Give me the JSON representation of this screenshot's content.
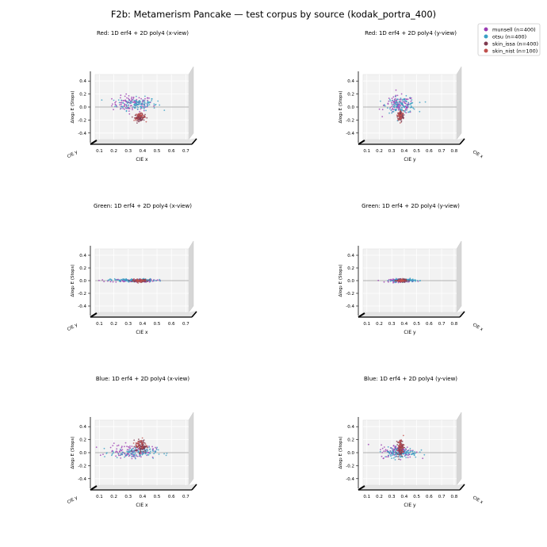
{
  "figure": {
    "title": "F2b: Metamerism Pancake — test corpus by source (kodak_portra_400)"
  },
  "legend": {
    "placement": "top-right",
    "items": [
      {
        "label": "munsell (n=400)",
        "color": "#9b3db3"
      },
      {
        "label": "otsu (n=400)",
        "color": "#3a9fc4"
      },
      {
        "label": "skin_issa (n=400)",
        "color": "#7f3b50"
      },
      {
        "label": "skin_nist (n=100)",
        "color": "#c0504d"
      }
    ]
  },
  "chart_data": [
    {
      "type": "scatter",
      "title": "Red: 1D erf4 + 2D poly4 (x-view)",
      "xlabel": "CIE x",
      "ylabel": "Δlog₂ E (Stops)",
      "depth_label": "CIE y",
      "xticks": [
        "0.1",
        "0.2",
        "0.3",
        "0.4",
        "0.5",
        "0.6",
        "0.7"
      ],
      "yticks": [
        "0.4",
        "0.2",
        "0.0",
        "-0.2",
        "-0.4"
      ],
      "xlim": [
        0.07,
        0.72
      ],
      "ylim": [
        -0.5,
        0.5
      ],
      "clusters": [
        {
          "series": "munsell",
          "center": [
            0.33,
            0.05
          ],
          "spread": [
            0.07,
            0.06
          ],
          "count": 110
        },
        {
          "series": "otsu",
          "center": [
            0.36,
            0.05
          ],
          "spread": [
            0.07,
            0.05
          ],
          "count": 110
        },
        {
          "series": "skin_issa",
          "center": [
            0.38,
            -0.16
          ],
          "spread": [
            0.018,
            0.025
          ],
          "count": 90
        },
        {
          "series": "skin_nist",
          "center": [
            0.38,
            -0.15
          ],
          "spread": [
            0.02,
            0.03
          ],
          "count": 30
        }
      ]
    },
    {
      "type": "scatter",
      "title": "Red: 1D erf4 + 2D poly4 (y-view)",
      "xlabel": "CIE y",
      "ylabel": "Δlog₂ E (Stops)",
      "depth_label": "CIE x",
      "xticks": [
        "0.1",
        "0.2",
        "0.3",
        "0.4",
        "0.5",
        "0.6",
        "0.7",
        "0.8"
      ],
      "yticks": [
        "0.4",
        "0.2",
        "0.0",
        "-0.2",
        "-0.4"
      ],
      "xlim": [
        0.07,
        0.82
      ],
      "ylim": [
        -0.5,
        0.5
      ],
      "clusters": [
        {
          "series": "munsell",
          "center": [
            0.36,
            0.03
          ],
          "spread": [
            0.06,
            0.07
          ],
          "count": 110
        },
        {
          "series": "otsu",
          "center": [
            0.38,
            0.03
          ],
          "spread": [
            0.06,
            0.06
          ],
          "count": 110
        },
        {
          "series": "skin_issa",
          "center": [
            0.37,
            -0.14
          ],
          "spread": [
            0.012,
            0.04
          ],
          "count": 90
        },
        {
          "series": "skin_nist",
          "center": [
            0.37,
            -0.13
          ],
          "spread": [
            0.015,
            0.04
          ],
          "count": 30
        }
      ]
    },
    {
      "type": "scatter",
      "title": "Green: 1D erf4 + 2D poly4 (x-view)",
      "xlabel": "CIE x",
      "ylabel": "Δlog₂ E (Stops)",
      "depth_label": "CIE y",
      "xticks": [
        "0.1",
        "0.2",
        "0.3",
        "0.4",
        "0.5",
        "0.6",
        "0.7"
      ],
      "yticks": [
        "0.4",
        "0.2",
        "0.0",
        "-0.2",
        "-0.4"
      ],
      "xlim": [
        0.07,
        0.72
      ],
      "ylim": [
        -0.5,
        0.5
      ],
      "clusters": [
        {
          "series": "munsell",
          "center": [
            0.33,
            0.0
          ],
          "spread": [
            0.08,
            0.012
          ],
          "count": 110
        },
        {
          "series": "otsu",
          "center": [
            0.34,
            0.005
          ],
          "spread": [
            0.08,
            0.012
          ],
          "count": 110
        },
        {
          "series": "skin_issa",
          "center": [
            0.38,
            0.0
          ],
          "spread": [
            0.025,
            0.01
          ],
          "count": 90
        },
        {
          "series": "skin_nist",
          "center": [
            0.38,
            0.0
          ],
          "spread": [
            0.025,
            0.012
          ],
          "count": 30
        }
      ]
    },
    {
      "type": "scatter",
      "title": "Green: 1D erf4 + 2D poly4 (y-view)",
      "xlabel": "CIE y",
      "ylabel": "Δlog₂ E (Stops)",
      "depth_label": "CIE x",
      "xticks": [
        "0.1",
        "0.2",
        "0.3",
        "0.4",
        "0.5",
        "0.6",
        "0.7",
        "0.8"
      ],
      "yticks": [
        "0.4",
        "0.2",
        "0.0",
        "-0.2",
        "-0.4"
      ],
      "xlim": [
        0.07,
        0.82
      ],
      "ylim": [
        -0.5,
        0.5
      ],
      "clusters": [
        {
          "series": "munsell",
          "center": [
            0.38,
            0.0
          ],
          "spread": [
            0.05,
            0.012
          ],
          "count": 110
        },
        {
          "series": "otsu",
          "center": [
            0.39,
            0.005
          ],
          "spread": [
            0.05,
            0.012
          ],
          "count": 110
        },
        {
          "series": "skin_issa",
          "center": [
            0.38,
            0.0
          ],
          "spread": [
            0.02,
            0.01
          ],
          "count": 90
        },
        {
          "series": "skin_nist",
          "center": [
            0.38,
            0.0
          ],
          "spread": [
            0.02,
            0.012
          ],
          "count": 30
        }
      ]
    },
    {
      "type": "scatter",
      "title": "Blue: 1D erf4 + 2D poly4 (x-view)",
      "xlabel": "CIE x",
      "ylabel": "Δlog₂ E (Stops)",
      "depth_label": "CIE y",
      "xticks": [
        "0.1",
        "0.2",
        "0.3",
        "0.4",
        "0.5",
        "0.6",
        "0.7"
      ],
      "yticks": [
        "0.4",
        "0.2",
        "0.0",
        "-0.2",
        "-0.4"
      ],
      "xlim": [
        0.07,
        0.72
      ],
      "ylim": [
        -0.5,
        0.5
      ],
      "clusters": [
        {
          "series": "munsell",
          "center": [
            0.32,
            0.02
          ],
          "spread": [
            0.08,
            0.05
          ],
          "count": 110
        },
        {
          "series": "otsu",
          "center": [
            0.34,
            0.0
          ],
          "spread": [
            0.08,
            0.04
          ],
          "count": 110
        },
        {
          "series": "skin_issa",
          "center": [
            0.39,
            0.1
          ],
          "spread": [
            0.02,
            0.05
          ],
          "count": 90
        },
        {
          "series": "skin_nist",
          "center": [
            0.39,
            0.12
          ],
          "spread": [
            0.02,
            0.05
          ],
          "count": 30
        }
      ]
    },
    {
      "type": "scatter",
      "title": "Blue: 1D erf4 + 2D poly4 (y-view)",
      "xlabel": "CIE y",
      "ylabel": "Δlog₂ E (Stops)",
      "depth_label": "CIE x",
      "xticks": [
        "0.1",
        "0.2",
        "0.3",
        "0.4",
        "0.5",
        "0.6",
        "0.7",
        "0.8"
      ],
      "yticks": [
        "0.4",
        "0.2",
        "0.0",
        "-0.2",
        "-0.4"
      ],
      "xlim": [
        0.07,
        0.82
      ],
      "ylim": [
        -0.5,
        0.5
      ],
      "clusters": [
        {
          "series": "munsell",
          "center": [
            0.35,
            0.02
          ],
          "spread": [
            0.07,
            0.05
          ],
          "count": 110
        },
        {
          "series": "otsu",
          "center": [
            0.37,
            0.0
          ],
          "spread": [
            0.07,
            0.04
          ],
          "count": 110
        },
        {
          "series": "skin_issa",
          "center": [
            0.37,
            0.08
          ],
          "spread": [
            0.012,
            0.06
          ],
          "count": 90
        },
        {
          "series": "skin_nist",
          "center": [
            0.37,
            0.1
          ],
          "spread": [
            0.015,
            0.06
          ],
          "count": 30
        }
      ]
    }
  ]
}
